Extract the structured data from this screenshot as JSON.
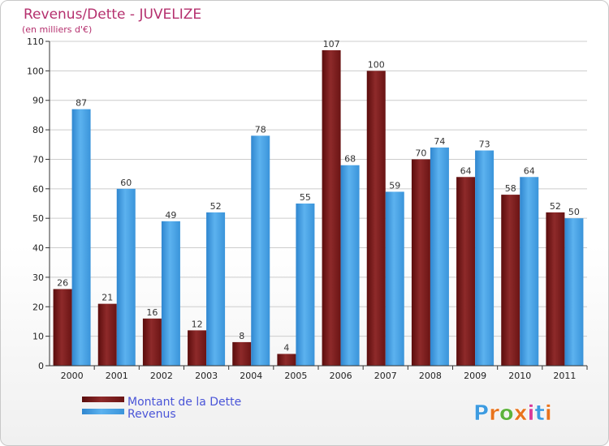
{
  "chart_data": {
    "type": "bar",
    "title": "Revenus/Dette - JUVELIZE",
    "subtitle": "(en milliers d'€)",
    "categories": [
      "2000",
      "2001",
      "2002",
      "2003",
      "2004",
      "2005",
      "2006",
      "2007",
      "2008",
      "2009",
      "2010",
      "2011"
    ],
    "series": [
      {
        "name": "Montant de la Dette",
        "values": [
          26,
          21,
          16,
          12,
          8,
          4,
          107,
          100,
          70,
          64,
          58,
          52
        ],
        "color": "#7a1c1c"
      },
      {
        "name": "Revenus",
        "values": [
          87,
          60,
          49,
          52,
          78,
          55,
          68,
          59,
          74,
          73,
          64,
          50
        ],
        "color": "#4ea6e6"
      }
    ],
    "ylim": [
      0,
      110
    ],
    "yticks": [
      0,
      10,
      20,
      30,
      40,
      50,
      60,
      70,
      80,
      90,
      100,
      110
    ],
    "grid": true,
    "legend": "bottom-left"
  },
  "colors": {
    "title": "#b5306e",
    "legend_text": "#4a55d8",
    "axis": "#333333",
    "grid": "#cccccc"
  },
  "logo": {
    "letters": [
      "P",
      "r",
      "o",
      "x",
      "i",
      "t",
      "i"
    ],
    "letter_colors": [
      "#3d9be0",
      "#e8731c",
      "#5db33c",
      "#e8731c",
      "#d93a9a",
      "#3d9be0",
      "#e8731c"
    ]
  }
}
